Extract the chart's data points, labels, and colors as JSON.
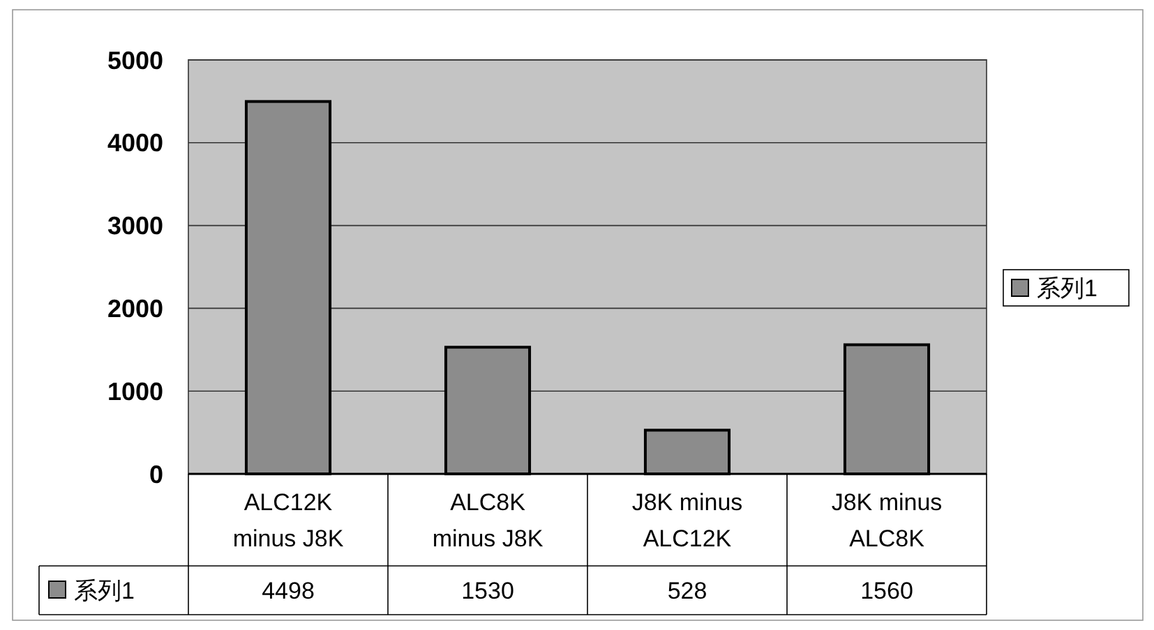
{
  "chart_data": {
    "type": "bar",
    "categories": [
      "ALC12K minus J8K",
      "ALC8K minus J8K",
      "J8K minus ALC12K",
      "J8K minus ALC8K"
    ],
    "series": [
      {
        "name": "系列1",
        "color": "#8c8c8c",
        "values": [
          4498,
          1530,
          528,
          1560
        ]
      }
    ],
    "ylim": [
      0,
      5000
    ],
    "yticks": [
      0,
      1000,
      2000,
      3000,
      4000,
      5000
    ],
    "grid": "y",
    "legend": "right",
    "data_labels": true
  }
}
